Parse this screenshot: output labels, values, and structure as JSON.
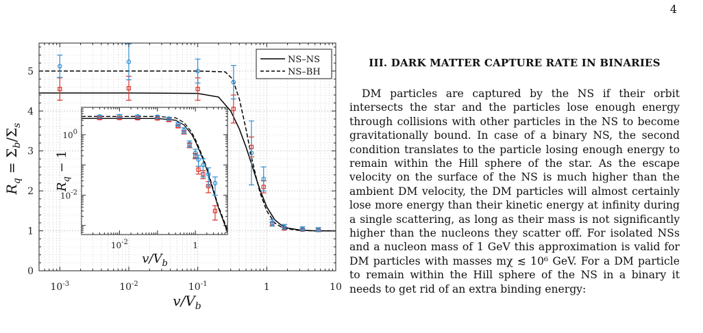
{
  "page": {
    "number": "4",
    "section_title": "III.   DARK MATTER CAPTURE RATE IN BINARIES",
    "body": "DM particles are captured by the NS if their orbit intersects the star and the particles lose enough energy through collisions with other particles in the NS to become gravitationally bound. In case of a binary NS, the second condition translates to the particle losing enough energy to remain within the Hill sphere of the star. As the escape velocity on the surface of the NS is much higher than the ambient DM velocity, the DM particles will almost certainly lose more energy than their kinetic energy at infinity during a single scattering, as long as their mass is not significantly higher than the nucleons they scatter off. For isolated NSs and a nucleon mass of 1 GeV this approximation is valid for DM particles with masses mχ ≲ 10⁶ GeV. For a DM particle to remain within the Hill sphere of the NS in a binary it needs to get rid of an extra binding energy:"
  },
  "chart_data": [
    {
      "type": "line",
      "role": "main",
      "xlabel": "v/V_b",
      "ylabel": "R_q = Σ_b/Σ_s",
      "xscale": "log",
      "xlim": [
        0.0005,
        10
      ],
      "ylim": [
        0,
        5.7
      ],
      "grid": true,
      "x_tick_labels": [
        "10^-3",
        "10^-2",
        "10^-1",
        "1",
        "10"
      ],
      "y_tick_labels": [
        "0",
        "1",
        "2",
        "3",
        "4",
        "5"
      ],
      "legend": {
        "placement": "top-right",
        "entries": [
          "NS–NS",
          "NS–BH"
        ]
      },
      "series": [
        {
          "name": "NS–NS",
          "style": "solid",
          "color": "#000000",
          "x": [
            0.0005,
            0.001,
            0.01,
            0.1,
            0.2,
            0.3,
            0.4,
            0.5,
            0.6,
            0.7,
            0.8,
            1.0,
            1.3,
            1.6,
            2.0,
            3.0,
            5.0,
            10.0
          ],
          "y": [
            4.45,
            4.45,
            4.45,
            4.44,
            4.35,
            4.0,
            3.55,
            3.1,
            2.68,
            2.32,
            2.02,
            1.6,
            1.28,
            1.15,
            1.07,
            1.02,
            1.0,
            1.0
          ]
        },
        {
          "name": "NS–BH",
          "style": "dashed",
          "color": "#000000",
          "x": [
            0.0005,
            0.001,
            0.01,
            0.1,
            0.25,
            0.32,
            0.4,
            0.5,
            0.6,
            0.7,
            0.8,
            1.0,
            1.3,
            1.6,
            2.0,
            3.0,
            5.0,
            10.0
          ],
          "y": [
            5.0,
            5.0,
            5.0,
            5.0,
            4.98,
            4.8,
            4.3,
            3.55,
            2.85,
            2.35,
            1.95,
            1.5,
            1.2,
            1.1,
            1.05,
            1.01,
            1.0,
            1.0
          ]
        },
        {
          "name": "",
          "marker": "square",
          "color": "#d9322b",
          "x": [
            0.001,
            0.01,
            0.1,
            0.33,
            0.6,
            0.9,
            1.2,
            1.8,
            3.3,
            5.6
          ],
          "y": [
            4.55,
            4.57,
            4.55,
            4.05,
            3.1,
            2.1,
            1.17,
            1.06,
            1.03,
            1.02
          ],
          "err": [
            0.28,
            0.3,
            0.28,
            0.35,
            0.25,
            0.15,
            0.05,
            0.03,
            0.02,
            0.02
          ]
        },
        {
          "name": "",
          "marker": "circle",
          "color": "#2e8ecf",
          "x": [
            0.001,
            0.01,
            0.1,
            0.33,
            0.6,
            0.9,
            1.2,
            1.8,
            3.3,
            5.6
          ],
          "y": [
            5.12,
            5.23,
            5.0,
            4.72,
            2.95,
            2.3,
            1.2,
            1.1,
            1.05,
            1.03
          ],
          "err": [
            0.28,
            0.45,
            0.3,
            0.42,
            0.8,
            0.3,
            0.08,
            0.06,
            0.05,
            0.05
          ]
        }
      ]
    },
    {
      "type": "line",
      "role": "inset",
      "xlabel": "v/V_b",
      "ylabel": "R_q − 1",
      "xscale": "log",
      "yscale": "log",
      "xlim": [
        0.001,
        7
      ],
      "ylim": [
        0.0005,
        8
      ],
      "x_tick_labels": [
        "10^-2",
        "1"
      ],
      "y_tick_labels": [
        "10^0",
        "10^-2"
      ],
      "series": [
        {
          "name": "NS–NS",
          "style": "solid",
          "color": "#000000",
          "x": [
            0.001,
            0.01,
            0.1,
            0.3,
            0.5,
            0.8,
            1.0,
            1.3,
            1.6,
            2.0,
            2.7,
            4.0,
            7.0
          ],
          "y": [
            3.45,
            3.45,
            3.42,
            3.0,
            2.1,
            1.02,
            0.6,
            0.28,
            0.15,
            0.07,
            0.02,
            0.004,
            0.0006
          ]
        },
        {
          "name": "NS–BH",
          "style": "dashed",
          "color": "#000000",
          "x": [
            0.001,
            0.01,
            0.1,
            0.3,
            0.5,
            0.8,
            1.0,
            1.3,
            1.6,
            2.0,
            2.7,
            4.0,
            7.0
          ],
          "y": [
            4.0,
            4.0,
            4.0,
            3.6,
            2.55,
            1.2,
            0.7,
            0.32,
            0.17,
            0.08,
            0.023,
            0.0045,
            0.0007
          ]
        },
        {
          "name": "",
          "marker": "square",
          "color": "#d9322b",
          "x": [
            0.003,
            0.01,
            0.03,
            0.1,
            0.2,
            0.35,
            0.5,
            0.7,
            1.0,
            1.2,
            1.6,
            2.2,
            3.3
          ],
          "y": [
            3.55,
            3.57,
            3.5,
            3.45,
            3.05,
            1.9,
            1.2,
            0.45,
            0.2,
            0.07,
            0.05,
            0.02,
            0.003
          ],
          "err": [
            0.3,
            0.3,
            0.3,
            0.3,
            0.3,
            0.2,
            0.15,
            0.08,
            0.04,
            0.02,
            0.015,
            0.008,
            0.0015
          ]
        },
        {
          "name": "",
          "marker": "circle",
          "color": "#2e8ecf",
          "x": [
            0.003,
            0.01,
            0.03,
            0.1,
            0.2,
            0.35,
            0.5,
            0.7,
            1.0,
            1.2,
            1.6,
            2.2,
            3.3
          ],
          "y": [
            4.0,
            4.1,
            4.0,
            3.9,
            3.4,
            2.2,
            1.4,
            0.5,
            0.25,
            0.15,
            0.1,
            0.05,
            0.025
          ],
          "err": [
            0.4,
            0.5,
            0.4,
            0.4,
            0.35,
            0.3,
            0.3,
            0.12,
            0.08,
            0.06,
            0.06,
            0.03,
            0.015
          ]
        }
      ]
    }
  ]
}
